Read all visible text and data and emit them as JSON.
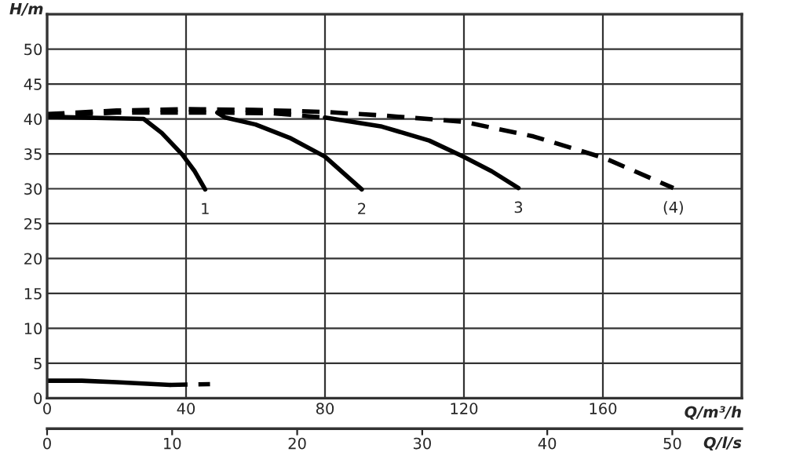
{
  "chart_data": {
    "type": "line",
    "xlabel": "Q/m³/h",
    "ylabel": "H/m",
    "x2label": "Q/l/s",
    "xlim": [
      0,
      200
    ],
    "xticks": [
      0,
      40,
      80,
      120,
      160
    ],
    "ylim": [
      0,
      55
    ],
    "yticks": [
      0,
      5,
      10,
      15,
      20,
      25,
      30,
      35,
      40,
      45,
      50
    ],
    "x2lim": [
      0,
      55.56
    ],
    "x2ticks": [
      0,
      10,
      20,
      30,
      40,
      50
    ],
    "grid": true,
    "legend": false,
    "marker": "none",
    "series": [
      {
        "color": "#000000",
        "line_style": "solid",
        "x": [
          0,
          27.8,
          33,
          38.9,
          42.5,
          45.5
        ],
        "values": [
          40.3,
          40.0,
          38,
          34.9,
          32.5,
          29.9
        ]
      },
      {
        "color": "#000000",
        "line_style": "dashed",
        "x": [
          0,
          20,
          49,
          65,
          80
        ],
        "values": [
          40.5,
          40.9,
          40.9,
          40.8,
          40.2
        ]
      },
      {
        "color": "#000000",
        "line_style": "solid",
        "x": [
          49,
          51.3,
          60,
          69.8,
          80,
          90.6
        ],
        "values": [
          40.9,
          40.2,
          39.2,
          37.3,
          34.6,
          29.9
        ]
      },
      {
        "color": "#000000",
        "line_style": "solid",
        "x": [
          80,
          96.4,
          110,
          119.8,
          128,
          135.7
        ],
        "values": [
          40.2,
          38.9,
          36.9,
          34.6,
          32.5,
          30.1
        ]
      },
      {
        "color": "#000000",
        "line_style": "dashed",
        "x": [
          0,
          20,
          40,
          60,
          80,
          96.4,
          119.8,
          140,
          160.4,
          180.3
        ],
        "values": [
          40.7,
          41.2,
          41.4,
          41.3,
          41.0,
          40.5,
          39.6,
          37.5,
          34.4,
          30.1
        ]
      },
      {
        "color": "#000000",
        "line_style": "solid",
        "x": [
          0,
          10,
          20,
          35.4
        ],
        "values": [
          2.5,
          2.5,
          2.3,
          1.9
        ]
      },
      {
        "color": "#000000",
        "line_style": "dashed",
        "x": [
          35.4,
          46.9
        ],
        "values": [
          1.9,
          2.0
        ]
      }
    ],
    "annotations": [
      {
        "text": "1",
        "x": 45.5,
        "y": 29.9
      },
      {
        "text": "2",
        "x": 90.6,
        "y": 29.9
      },
      {
        "text": "3",
        "x": 135.7,
        "y": 30.1
      },
      {
        "text": "(4)",
        "x": 180.3,
        "y": 30.1
      }
    ]
  }
}
